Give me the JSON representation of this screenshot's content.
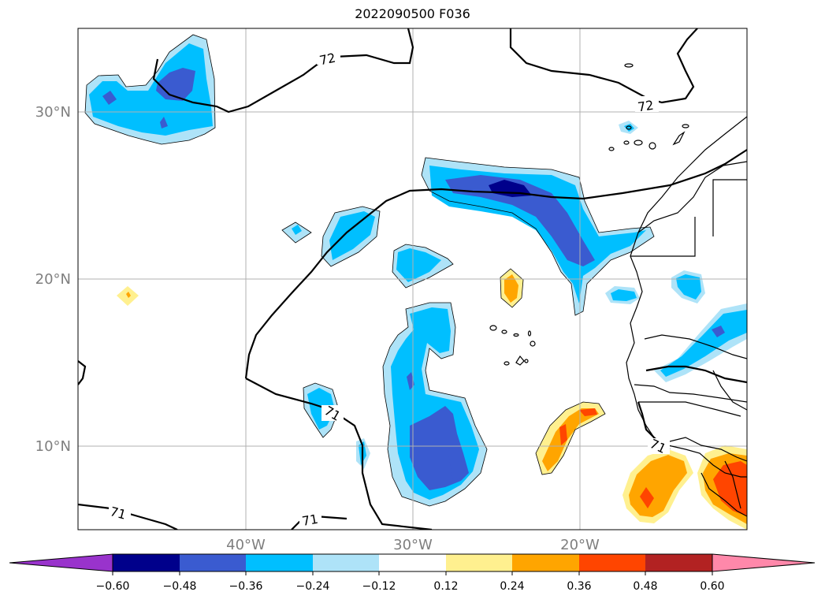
{
  "title": "2022090500 F036",
  "colors": {
    "cb": [
      "#9933cc",
      "#00008b",
      "#3a5bd0",
      "#00bfff",
      "#aee3f8",
      "#ffffff",
      "#fff08f",
      "#ffa500",
      "#ff4500",
      "#b22222",
      "#ff88aa"
    ],
    "coast": "#000000",
    "grid": "#b0b0b0"
  },
  "map": {
    "lat_ticks": [
      "30°N",
      "20°N",
      "10°N"
    ],
    "lon_ticks": [
      "40°W",
      "30°W",
      "20°W"
    ],
    "contour_labels": [
      "72",
      "72",
      "71",
      "71",
      "71",
      "71"
    ]
  },
  "colorbar": {
    "labels": [
      "−0.60",
      "−0.48",
      "−0.36",
      "−0.24",
      "−0.12",
      "0.12",
      "0.24",
      "0.36",
      "0.48",
      "0.60"
    ]
  }
}
